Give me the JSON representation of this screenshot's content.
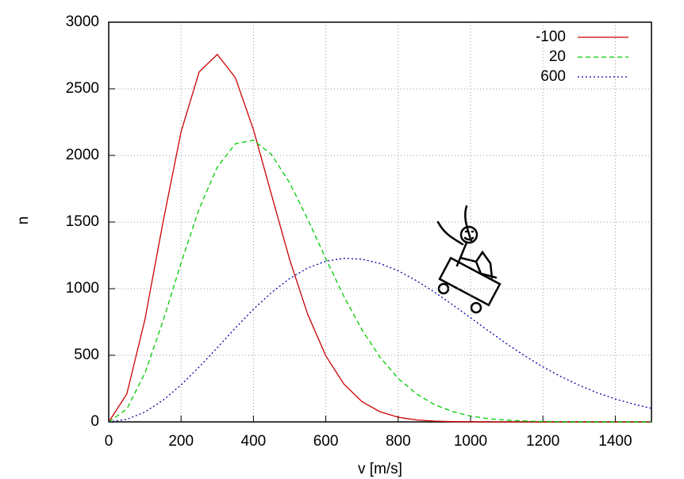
{
  "chart_data": {
    "type": "line",
    "x_label": "v [m/s]",
    "y_label": "n",
    "x": [
      0,
      50,
      100,
      150,
      200,
      250,
      300,
      350,
      400,
      450,
      500,
      550,
      600,
      650,
      700,
      750,
      800,
      850,
      900,
      950,
      1000,
      1050,
      1100,
      1150,
      1200,
      1250,
      1300,
      1350,
      1400,
      1450,
      1500
    ],
    "series": [
      {
        "name": "-100",
        "color": "#cc0000",
        "dash": "solid",
        "values": [
          0,
          209,
          768,
          1498,
          2178,
          2627,
          2758,
          2584,
          2194,
          1704,
          1219,
          807,
          496,
          284,
          152,
          76,
          35,
          15,
          6,
          2,
          1,
          0,
          0,
          0,
          0,
          0,
          0,
          0,
          0,
          0,
          0
        ]
      },
      {
        "name": "20",
        "color": "#00cc00",
        "dash": "dashed",
        "values": [
          0,
          96,
          366,
          756,
          1193,
          1600,
          1912,
          2088,
          2115,
          2006,
          1795,
          1521,
          1226,
          942,
          691,
          485,
          326,
          211,
          130,
          78,
          44,
          24,
          13,
          7,
          3,
          2,
          1,
          0,
          0,
          0,
          0
        ]
      },
      {
        "name": "600",
        "color": "#0000aa",
        "dash": "dotted",
        "values": [
          0,
          19,
          74,
          162,
          278,
          412,
          557,
          705,
          845,
          971,
          1076,
          1155,
          1206,
          1228,
          1221,
          1189,
          1134,
          1061,
          975,
          880,
          781,
          682,
          586,
          496,
          413,
          340,
          275,
          219,
          172,
          134,
          102
        ]
      }
    ],
    "xlim": [
      0,
      1500
    ],
    "xticks": [
      0,
      200,
      400,
      600,
      800,
      1000,
      1200,
      1400
    ],
    "ylim": [
      0,
      3000
    ],
    "yticks": [
      0,
      500,
      1000,
      1500,
      2000,
      2500,
      3000
    ],
    "grid": true,
    "legend": "top-right"
  }
}
